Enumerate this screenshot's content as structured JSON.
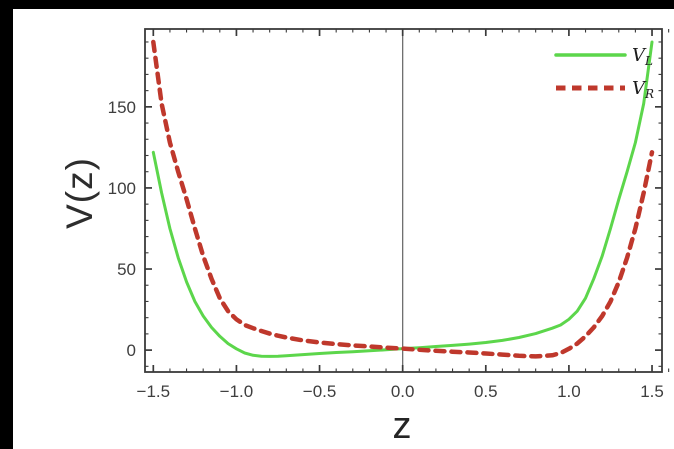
{
  "figure": {
    "background_color": "#ffffff",
    "top_bar_color": "#000000",
    "left_bar_color": "#000000"
  },
  "chart_data": {
    "type": "line",
    "title": "",
    "xlabel": "z",
    "ylabel": "V(z)",
    "xlim": [
      -1.55,
      1.56
    ],
    "ylim": [
      -13.5,
      198
    ],
    "x_major_ticks": [
      -1.5,
      -1.0,
      -0.5,
      0.0,
      0.5,
      1.0,
      1.5
    ],
    "x_tick_labels": [
      "-1.5",
      "-1.0",
      "-0.5",
      "0.0",
      "0.5",
      "1.0",
      "1.5"
    ],
    "x_minor_step": 0.1,
    "y_major_ticks": [
      0,
      50,
      100,
      150
    ],
    "y_tick_labels": [
      "0",
      "50",
      "100",
      "150"
    ],
    "y_minor_step": 10,
    "zero_line_x": 0,
    "grid": false,
    "legend_position": "top-right",
    "frame_color": "#3a3a3a",
    "zero_line_color": "#6e6e6e",
    "tick_label_color": "#3e3e3e",
    "axis_label_color": "#2d2d2d",
    "legend_text_color": "#1c1c1c",
    "series": [
      {
        "name": "VL",
        "label_base": "V",
        "label_sub": "L",
        "color": "#5cd64b",
        "style": "solid",
        "x": [
          -1.5,
          -1.45,
          -1.4,
          -1.35,
          -1.3,
          -1.25,
          -1.2,
          -1.15,
          -1.1,
          -1.05,
          -1.0,
          -0.95,
          -0.9,
          -0.85,
          -0.8,
          -0.75,
          -0.7,
          -0.6,
          -0.5,
          -0.4,
          -0.3,
          -0.2,
          -0.1,
          0.0,
          0.1,
          0.2,
          0.3,
          0.4,
          0.5,
          0.6,
          0.7,
          0.8,
          0.9,
          0.95,
          1.0,
          1.05,
          1.1,
          1.15,
          1.2,
          1.25,
          1.3,
          1.35,
          1.4,
          1.45,
          1.5
        ],
        "y": [
          122,
          97,
          75,
          57,
          42,
          30,
          21,
          14,
          8.5,
          4,
          0.8,
          -1.8,
          -3.2,
          -3.8,
          -3.9,
          -3.8,
          -3.5,
          -2.8,
          -2.1,
          -1.5,
          -1.0,
          -0.4,
          0.2,
          0.9,
          1.5,
          2.2,
          2.9,
          3.7,
          4.7,
          6.0,
          7.8,
          10.2,
          13.5,
          15.5,
          19,
          24,
          32,
          44,
          58,
          75,
          93,
          110,
          128,
          152,
          190
        ]
      },
      {
        "name": "VR",
        "label_base": "V",
        "label_sub": "R",
        "color": "#bf382c",
        "style": "dashed",
        "x": [
          -1.5,
          -1.45,
          -1.4,
          -1.35,
          -1.3,
          -1.25,
          -1.2,
          -1.15,
          -1.1,
          -1.05,
          -1.0,
          -0.95,
          -0.9,
          -0.85,
          -0.8,
          -0.75,
          -0.7,
          -0.6,
          -0.5,
          -0.4,
          -0.3,
          -0.2,
          -0.1,
          0.0,
          0.1,
          0.2,
          0.3,
          0.4,
          0.5,
          0.6,
          0.7,
          0.8,
          0.9,
          0.95,
          1.0,
          1.05,
          1.1,
          1.15,
          1.2,
          1.25,
          1.3,
          1.35,
          1.4,
          1.45,
          1.5
        ],
        "y": [
          190,
          152,
          128,
          110,
          93,
          75,
          58,
          44,
          32,
          24,
          19,
          15.5,
          13.5,
          11.8,
          10.2,
          8.9,
          7.8,
          6.0,
          4.7,
          3.7,
          2.9,
          2.2,
          1.5,
          0.9,
          0.2,
          -0.4,
          -1.0,
          -1.5,
          -2.1,
          -2.8,
          -3.5,
          -3.9,
          -3.2,
          -1.8,
          0.8,
          4,
          8.5,
          14,
          21,
          30,
          42,
          57,
          75,
          97,
          122
        ]
      }
    ]
  }
}
